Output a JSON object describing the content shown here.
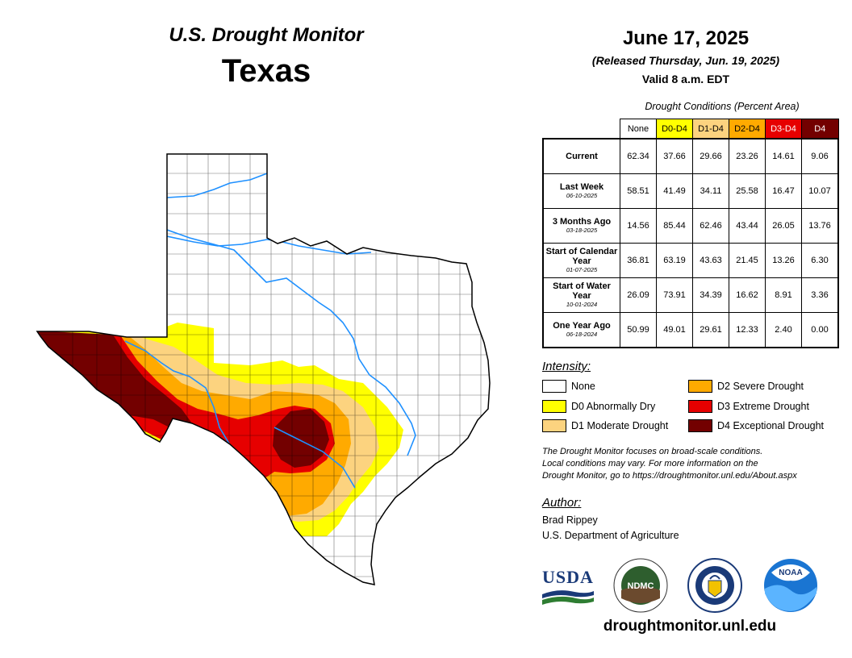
{
  "header": {
    "top_title": "U.S. Drought Monitor",
    "state": "Texas",
    "date": "June 17, 2025",
    "released": "(Released Thursday, Jun. 19, 2025)",
    "valid": "Valid 8 a.m. EDT"
  },
  "table": {
    "caption": "Drought Conditions (Percent Area)",
    "columns": [
      {
        "label": "None",
        "color": "#ffffff",
        "text_color": "#000000"
      },
      {
        "label": "D0-D4",
        "color": "#ffff00",
        "text_color": "#000000"
      },
      {
        "label": "D1-D4",
        "color": "#fcd37f",
        "text_color": "#000000"
      },
      {
        "label": "D2-D4",
        "color": "#ffaa00",
        "text_color": "#000000"
      },
      {
        "label": "D3-D4",
        "color": "#e60000",
        "text_color": "#ffffff"
      },
      {
        "label": "D4",
        "color": "#730000",
        "text_color": "#ffffff"
      }
    ],
    "rows": [
      {
        "label": "Current",
        "sub": "",
        "values": [
          "62.34",
          "37.66",
          "29.66",
          "23.26",
          "14.61",
          "9.06"
        ]
      },
      {
        "label": "Last Week",
        "sub": "06-10-2025",
        "values": [
          "58.51",
          "41.49",
          "34.11",
          "25.58",
          "16.47",
          "10.07"
        ]
      },
      {
        "label": "3 Months Ago",
        "sub": "03-18-2025",
        "values": [
          "14.56",
          "85.44",
          "62.46",
          "43.44",
          "26.05",
          "13.76"
        ]
      },
      {
        "label": "Start of Calendar Year",
        "sub": "01-07-2025",
        "values": [
          "36.81",
          "63.19",
          "43.63",
          "21.45",
          "13.26",
          "6.30"
        ]
      },
      {
        "label": "Start of Water Year",
        "sub": "10-01-2024",
        "values": [
          "26.09",
          "73.91",
          "34.39",
          "16.62",
          "8.91",
          "3.36"
        ]
      },
      {
        "label": "One Year Ago",
        "sub": "06-18-2024",
        "values": [
          "50.99",
          "49.01",
          "29.61",
          "12.33",
          "2.40",
          "0.00"
        ]
      }
    ]
  },
  "legend": {
    "title": "Intensity:",
    "items": [
      {
        "label": "None",
        "color": "#ffffff"
      },
      {
        "label": "D0 Abnormally Dry",
        "color": "#ffff00"
      },
      {
        "label": "D1 Moderate Drought",
        "color": "#fcd37f"
      },
      {
        "label": "D2 Severe Drought",
        "color": "#ffaa00"
      },
      {
        "label": "D3 Extreme Drought",
        "color": "#e60000"
      },
      {
        "label": "D4 Exceptional Drought",
        "color": "#730000"
      }
    ]
  },
  "note": {
    "line1": "The Drought Monitor focuses on broad-scale conditions.",
    "line2": "Local conditions may vary. For more information on the",
    "line3": "Drought Monitor, go to https://droughtmonitor.unl.edu/About.aspx"
  },
  "author": {
    "heading": "Author:",
    "name": "Brad Rippey",
    "org": "U.S. Department of Agriculture"
  },
  "logos": {
    "usda": "USDA",
    "ndmc": "NDMC",
    "noaa": "NOAA"
  },
  "footer": {
    "site": "droughtmonitor.unl.edu"
  },
  "map": {
    "river_color": "#1e90ff",
    "border_color": "#000000"
  }
}
